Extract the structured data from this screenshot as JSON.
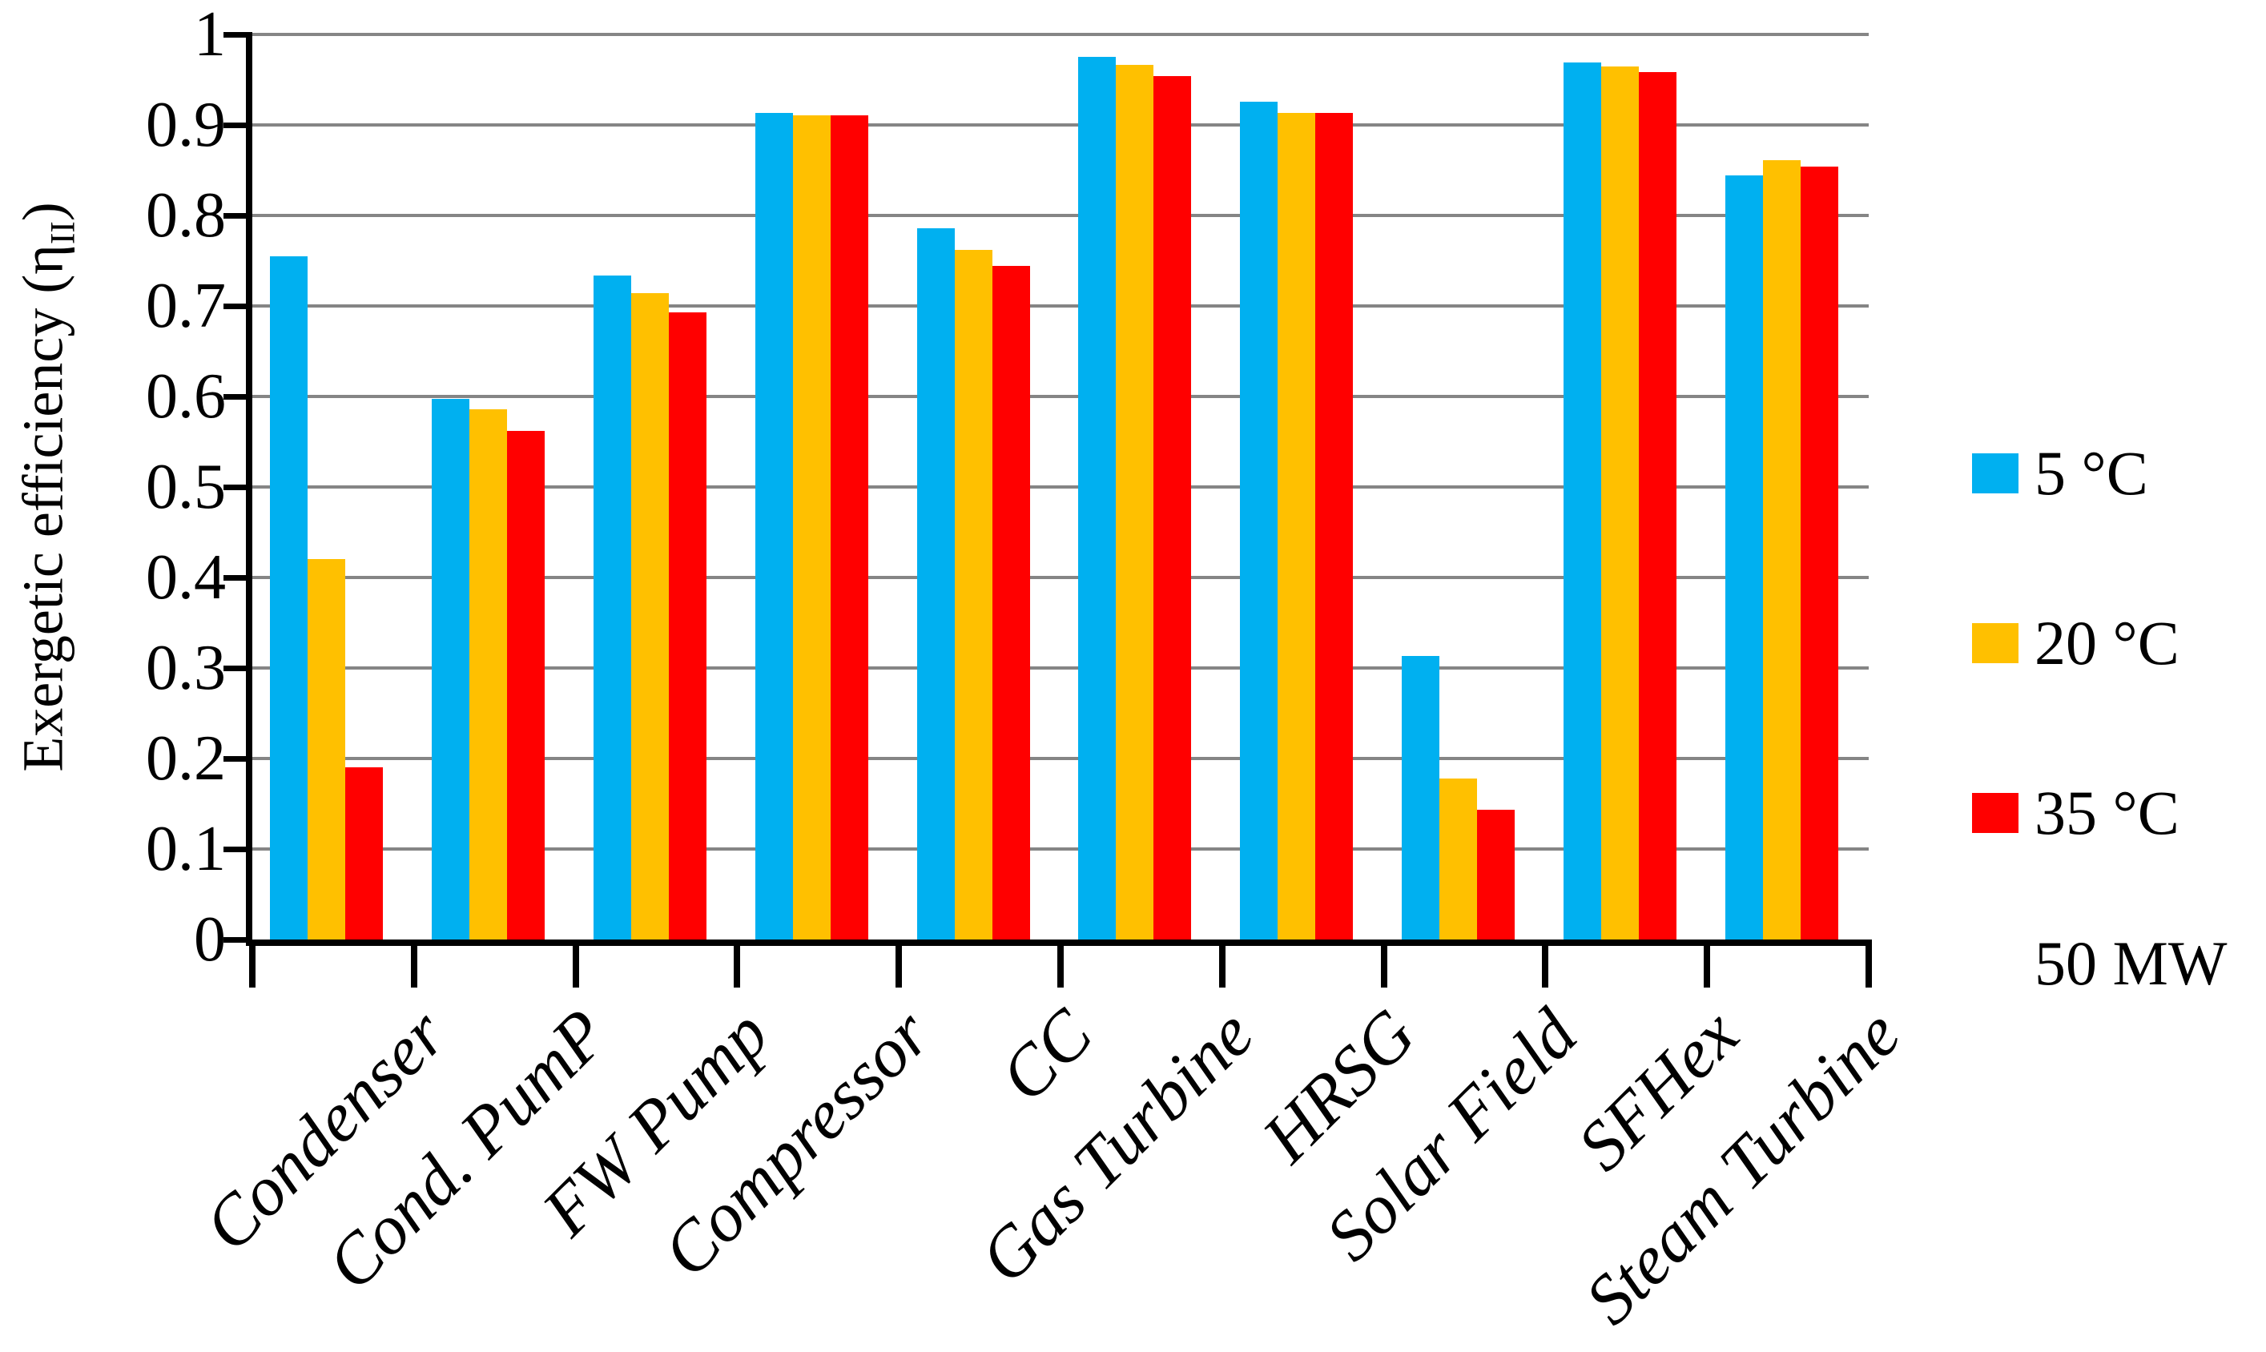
{
  "chart_data": {
    "type": "bar",
    "title": "",
    "ylabel_main": "Exergetic efficiency (η",
    "ylabel_sub": "II",
    "ylabel_end": ")",
    "categories": [
      "Condenser",
      "Cond. PumP",
      "FW Pump",
      "Compressor",
      "CC",
      "Gas Turbine",
      "HRSG",
      "Solar Field",
      "SFHex",
      "Steam Turbine"
    ],
    "series": [
      {
        "name": "5 °C",
        "color": "#00B0F0",
        "values": [
          0.755,
          0.597,
          0.734,
          0.913,
          0.786,
          0.975,
          0.926,
          0.313,
          0.969,
          0.844
        ]
      },
      {
        "name": "20 °C",
        "color": "#FFC000",
        "values": [
          0.42,
          0.586,
          0.714,
          0.911,
          0.762,
          0.966,
          0.913,
          0.178,
          0.965,
          0.861
        ]
      },
      {
        "name": "35 °C",
        "color": "#FF0000",
        "values": [
          0.19,
          0.562,
          0.693,
          0.911,
          0.744,
          0.954,
          0.913,
          0.143,
          0.958,
          0.854
        ]
      }
    ],
    "annotation": "50 MW",
    "ylim": [
      0,
      1
    ],
    "yticks": [
      "0",
      "0.1",
      "0.2",
      "0.3",
      "0.4",
      "0.5",
      "0.6",
      "0.7",
      "0.8",
      "0.9",
      "1"
    ],
    "grid": true,
    "legend_position": "right",
    "gridline_color": "#858585",
    "axis_color": "#000000"
  }
}
